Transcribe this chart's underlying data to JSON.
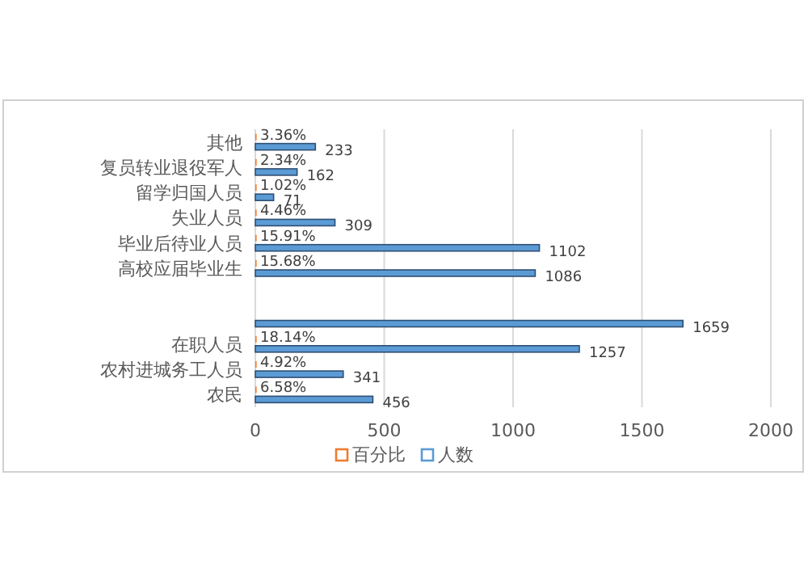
{
  "chart_data": {
    "type": "bar",
    "orientation": "horizontal",
    "categories": [
      "其他",
      "复员转业退役军人",
      "留学归国人员",
      "失业人员",
      "毕业后待业人员",
      "高校应届毕业生",
      null,
      null,
      "在职人员",
      "农村进城务工人员",
      "农民"
    ],
    "series": [
      {
        "name": "百分比",
        "color": "#ed7d31",
        "values": [
          0.0336,
          0.0234,
          0.0102,
          0.0446,
          0.1591,
          0.1568,
          null,
          null,
          0.1814,
          0.0492,
          0.0658
        ],
        "value_labels": [
          "3.36%",
          "2.34%",
          "1.02%",
          "4.46%",
          "15.91%",
          "15.68%",
          null,
          null,
          "18.14%",
          "4.92%",
          "6.58%"
        ]
      },
      {
        "name": "人数",
        "color": "#5b9bd5",
        "values": [
          233,
          162,
          71,
          309,
          1102,
          1086,
          null,
          1659,
          1257,
          341,
          456
        ],
        "value_labels": [
          "233",
          "162",
          "71",
          "309",
          "1102",
          "1086",
          null,
          "1659",
          "1257",
          "341",
          "456"
        ]
      }
    ],
    "xlim": [
      0,
      2000
    ],
    "xticks": [
      0,
      500,
      1000,
      1500,
      2000
    ],
    "grid": "x",
    "legend": "bottom"
  }
}
